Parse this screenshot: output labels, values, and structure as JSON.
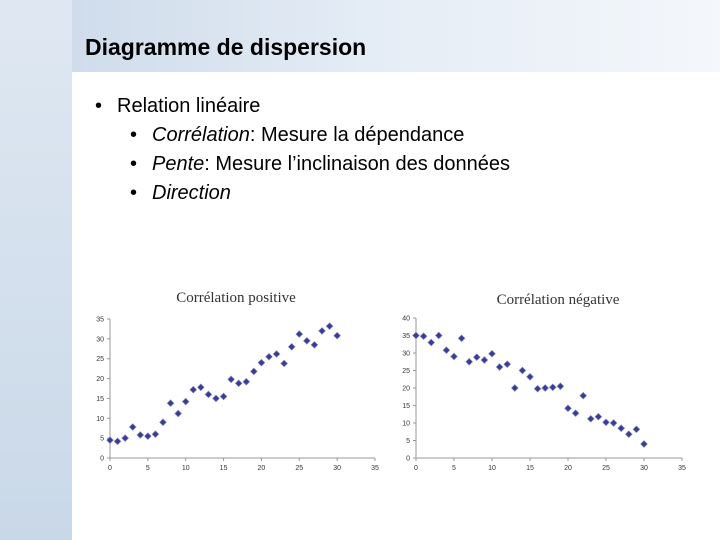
{
  "slide": {
    "title": "Diagramme de dispersion",
    "bullet": "Relation linéaire",
    "sub_bullets": [
      {
        "term": "Corrélation",
        "text": ": Mesure la dépendance"
      },
      {
        "term": "Pente",
        "text": ": Mesure l’inclinaison des données"
      },
      {
        "term": "Direction",
        "text": ""
      }
    ]
  },
  "chart_data": [
    {
      "type": "scatter",
      "title": "Corrélation positive",
      "xlim": [
        0,
        35
      ],
      "ylim": [
        0,
        35
      ],
      "xticks": [
        0,
        5,
        10,
        15,
        20,
        25,
        30,
        35
      ],
      "yticks": [
        0,
        5,
        10,
        15,
        20,
        25,
        30,
        35
      ],
      "marker_color": "#3a3d8f",
      "points": [
        [
          0,
          4.5
        ],
        [
          1,
          4.2
        ],
        [
          2,
          5
        ],
        [
          3,
          7.8
        ],
        [
          4,
          5.8
        ],
        [
          5,
          5.5
        ],
        [
          6,
          6
        ],
        [
          7,
          9
        ],
        [
          8,
          13.8
        ],
        [
          9,
          11.2
        ],
        [
          10,
          14.2
        ],
        [
          11,
          17.2
        ],
        [
          12,
          17.8
        ],
        [
          13,
          16
        ],
        [
          14,
          15
        ],
        [
          15,
          15.5
        ],
        [
          16,
          19.8
        ],
        [
          17,
          18.8
        ],
        [
          18,
          19.2
        ],
        [
          19,
          21.8
        ],
        [
          20,
          24
        ],
        [
          21,
          25.5
        ],
        [
          22,
          26.2
        ],
        [
          23,
          23.8
        ],
        [
          24,
          28
        ],
        [
          25,
          31.2
        ],
        [
          26,
          29.5
        ],
        [
          27,
          28.5
        ],
        [
          28,
          32
        ],
        [
          29,
          33.2
        ],
        [
          30,
          30.8
        ]
      ]
    },
    {
      "type": "scatter",
      "title": "Corrélation négative",
      "xlim": [
        0,
        35
      ],
      "ylim": [
        0,
        40
      ],
      "xticks": [
        0,
        5,
        10,
        15,
        20,
        25,
        30,
        35
      ],
      "yticks": [
        0,
        5,
        10,
        15,
        20,
        25,
        30,
        35,
        40
      ],
      "marker_color": "#3a3d8f",
      "points": [
        [
          0,
          35
        ],
        [
          1,
          34.8
        ],
        [
          2,
          33
        ],
        [
          3,
          35
        ],
        [
          4,
          30.8
        ],
        [
          5,
          29
        ],
        [
          6,
          34.2
        ],
        [
          7,
          27.5
        ],
        [
          8,
          28.8
        ],
        [
          9,
          28
        ],
        [
          10,
          29.8
        ],
        [
          11,
          26
        ],
        [
          12,
          26.8
        ],
        [
          13,
          20
        ],
        [
          14,
          25
        ],
        [
          15,
          23.2
        ],
        [
          16,
          19.8
        ],
        [
          17,
          20
        ],
        [
          18,
          20.2
        ],
        [
          19,
          20.5
        ],
        [
          20,
          14.2
        ],
        [
          21,
          12.8
        ],
        [
          22,
          17.8
        ],
        [
          23,
          11.2
        ],
        [
          24,
          11.8
        ],
        [
          25,
          10.2
        ],
        [
          26,
          10
        ],
        [
          27,
          8.5
        ],
        [
          28,
          6.8
        ],
        [
          29,
          8.2
        ],
        [
          30,
          4
        ]
      ]
    }
  ]
}
